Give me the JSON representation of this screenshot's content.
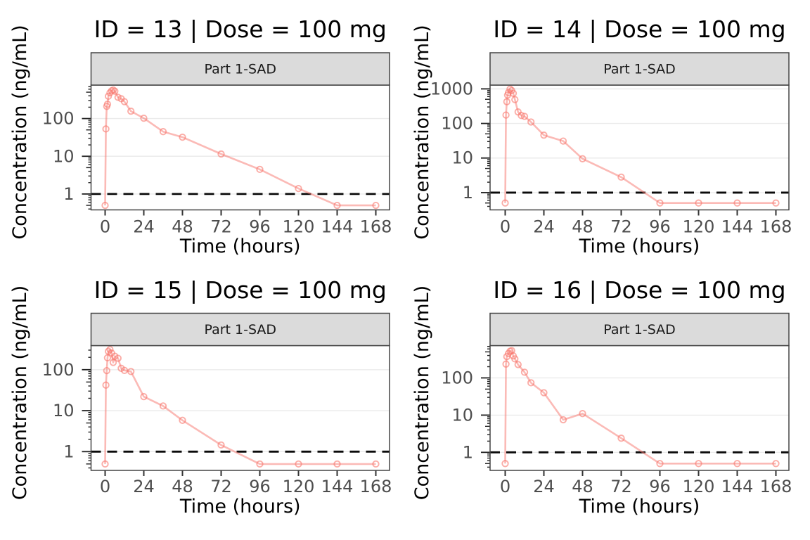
{
  "figure": {
    "description": "2x2 grid of single-subject pharmacokinetic concentration-time profiles, semilog scale",
    "lloq_value": 1,
    "series_color": "#F8766D",
    "strip_fill": "#DBDBDB",
    "grid_color": "#EBEBEB",
    "axis_text_color": "#4D4D4D",
    "border_color": "#444444"
  },
  "chart_data": [
    {
      "type": "line",
      "title": "ID = 13 | Dose = 100 mg",
      "strip_label": "Part 1-SAD",
      "xlabel": "Time (hours)",
      "ylabel": "Concentration (ng/mL)",
      "yscale": "log10",
      "lloq": 1,
      "xticks": [
        0,
        24,
        48,
        72,
        96,
        120,
        144,
        168
      ],
      "ytick_labels": [
        "100",
        "10",
        "1"
      ],
      "ylim_log10": [
        -0.421,
        2.887
      ],
      "xlim": [
        -8.7,
        176.5
      ],
      "x": [
        0,
        0.5,
        1,
        1.5,
        2,
        3,
        4,
        5,
        6,
        8,
        10,
        12,
        16,
        24,
        36,
        48,
        72,
        96,
        120,
        144,
        168
      ],
      "y": [
        0.5,
        53,
        210,
        240,
        390,
        480,
        545,
        570,
        530,
        365,
        335,
        280,
        157,
        102,
        45,
        32,
        11.5,
        4.5,
        1.4,
        0.5,
        0.5
      ]
    },
    {
      "type": "line",
      "title": "ID = 14 | Dose = 100 mg",
      "strip_label": "Part 1-SAD",
      "xlabel": "Time (hours)",
      "ylabel": "Concentration (ng/mL)",
      "yscale": "log10",
      "lloq": 1,
      "xticks": [
        0,
        24,
        48,
        72,
        96,
        120,
        144,
        168
      ],
      "ytick_labels": [
        "1000",
        "100",
        "10",
        "1"
      ],
      "ylim_log10": [
        -0.5,
        3.11
      ],
      "xlim": [
        -8.7,
        176.5
      ],
      "x": [
        0,
        0.5,
        1,
        1.5,
        2,
        3,
        4,
        5,
        6,
        8,
        10,
        12,
        16,
        24,
        36,
        48,
        72,
        96,
        120,
        144,
        168
      ],
      "y": [
        0.5,
        175,
        425,
        660,
        780,
        980,
        900,
        740,
        490,
        215,
        170,
        160,
        110,
        46,
        31,
        9.5,
        2.8,
        0.5,
        0.5,
        0.5,
        0.5
      ]
    },
    {
      "type": "line",
      "title": "ID = 15 | Dose = 100 mg",
      "strip_label": "Part 1-SAD",
      "xlabel": "Time (hours)",
      "ylabel": "Concentration (ng/mL)",
      "yscale": "log10",
      "lloq": 1,
      "xticks": [
        0,
        24,
        48,
        72,
        96,
        120,
        144,
        168
      ],
      "ytick_labels": [
        "100",
        "10",
        "1"
      ],
      "ylim_log10": [
        -0.458,
        2.588
      ],
      "xlim": [
        -8.7,
        176.5
      ],
      "x": [
        0,
        0.5,
        1,
        1.5,
        2,
        3,
        4,
        5,
        6,
        8,
        10,
        12,
        16,
        24,
        36,
        48,
        72,
        96,
        120,
        144,
        168
      ],
      "y": [
        0.5,
        42,
        95,
        195,
        280,
        310,
        255,
        150,
        212,
        190,
        108,
        96,
        90,
        22,
        13,
        5.8,
        1.45,
        0.5,
        0.5,
        0.5,
        0.5
      ]
    },
    {
      "type": "line",
      "title": "ID = 16 | Dose = 100 mg",
      "strip_label": "Part 1-SAD",
      "xlabel": "Time (hours)",
      "ylabel": "Concentration (ng/mL)",
      "yscale": "log10",
      "lloq": 1,
      "xticks": [
        0,
        24,
        48,
        72,
        96,
        120,
        144,
        168
      ],
      "ytick_labels": [
        "100",
        "10",
        "1"
      ],
      "ylim_log10": [
        -0.485,
        2.868
      ],
      "xlim": [
        -8.7,
        176.5
      ],
      "x": [
        0,
        0.5,
        1,
        2,
        3,
        4,
        5,
        6,
        8,
        12,
        16,
        24,
        36,
        48,
        72,
        96,
        120,
        144,
        168
      ],
      "y": [
        0.5,
        235,
        373,
        452,
        521,
        539,
        390,
        324,
        228,
        142,
        74,
        40,
        7.5,
        11,
        2.4,
        0.5,
        0.5,
        0.5,
        0.5
      ]
    }
  ]
}
